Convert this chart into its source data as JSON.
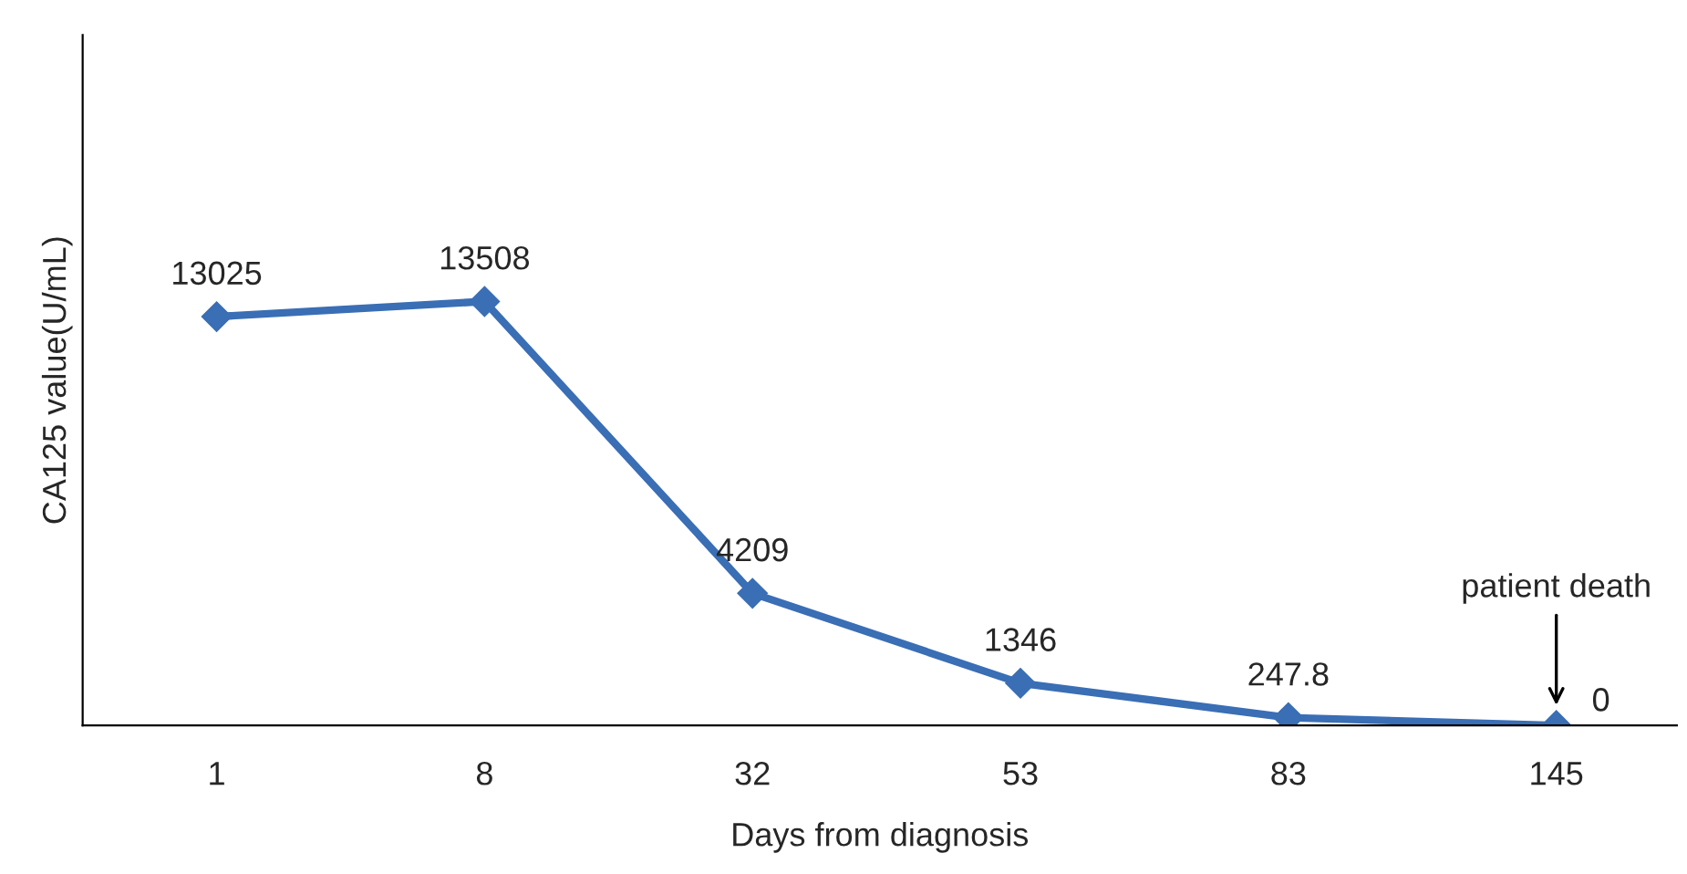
{
  "chart_data": {
    "type": "line",
    "xlabel": "Days from diagnosis",
    "ylabel": "CA125 value(U/mL)",
    "categories": [
      "1",
      "8",
      "32",
      "53",
      "83",
      "145"
    ],
    "series": [
      {
        "color": "#3a6eb5",
        "values": [
          13025,
          13508,
          4209,
          1346,
          247.8,
          0
        ]
      }
    ],
    "ylim": [
      0,
      22000
    ],
    "tick_labels": "x",
    "data_labels": true,
    "marker": "diamond",
    "line_style": "solid",
    "grid": false,
    "legend": false,
    "annotations": [
      "patient death"
    ]
  }
}
